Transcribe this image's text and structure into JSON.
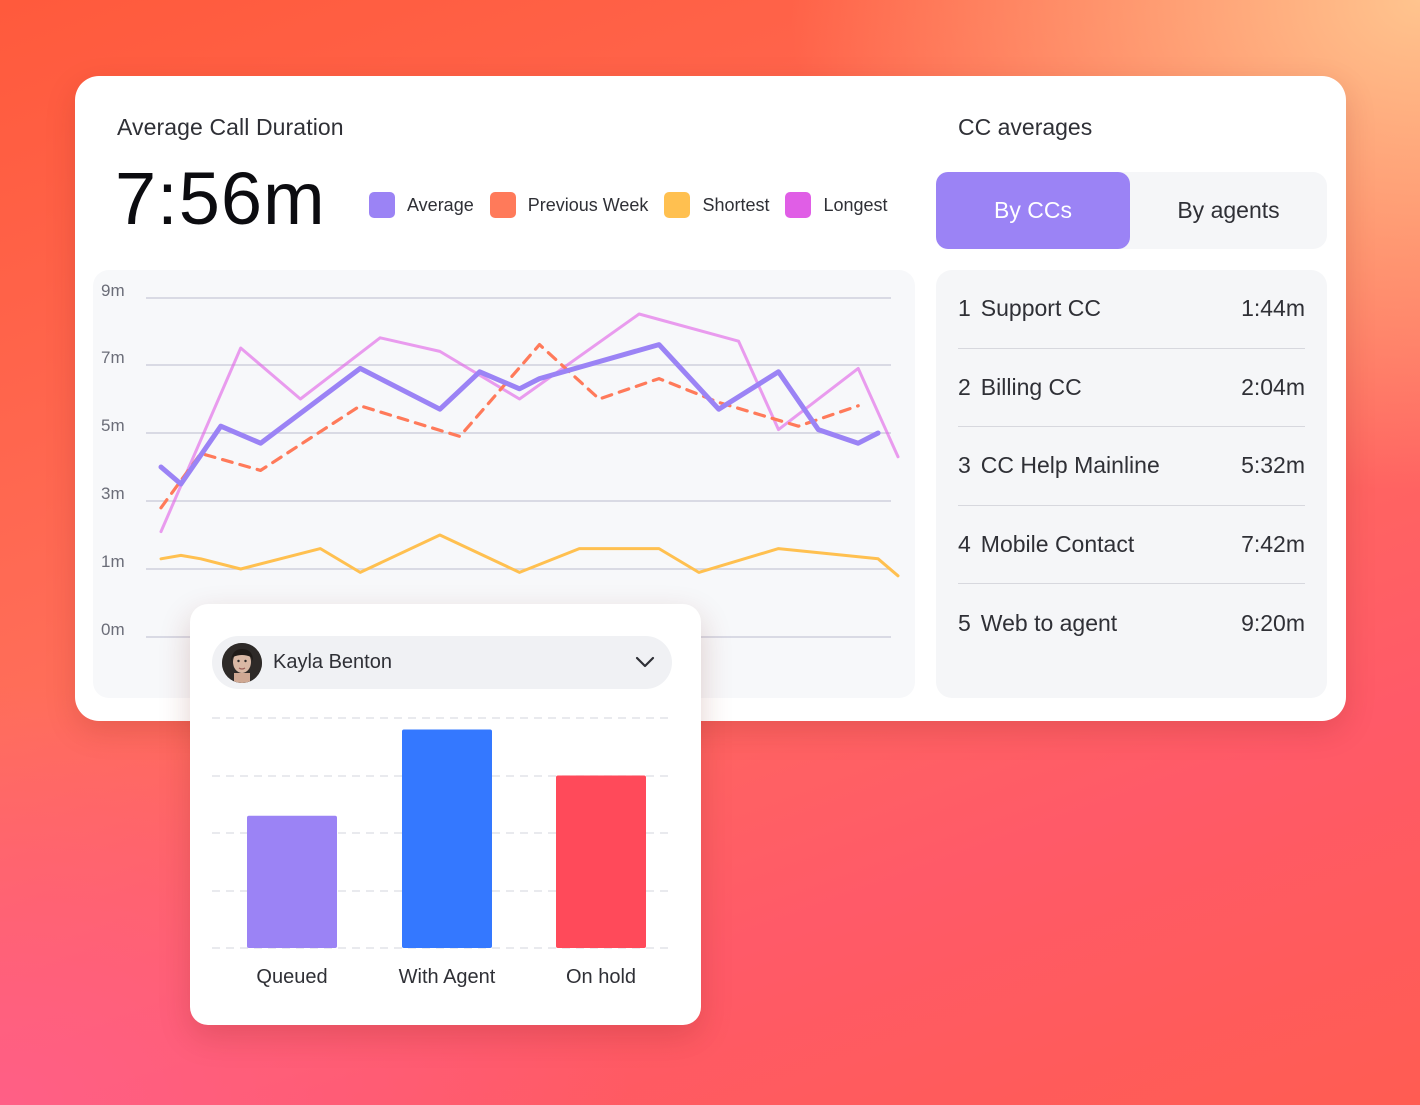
{
  "duration": {
    "title": "Average Call Duration",
    "value": "7:56m"
  },
  "legend": [
    {
      "label": "Average",
      "color": "#9b83f5"
    },
    {
      "label": "Previous Week",
      "color": "#ff7a5a"
    },
    {
      "label": "Shortest",
      "color": "#ffc050"
    },
    {
      "label": "Longest",
      "color": "#e05ee6"
    }
  ],
  "cc_averages": {
    "title": "CC averages",
    "tabs": [
      {
        "label": "By CCs",
        "active": true
      },
      {
        "label": "By agents",
        "active": false
      }
    ],
    "rows": [
      {
        "rank": "1",
        "name": "Support CC",
        "value": "1:44m"
      },
      {
        "rank": "2",
        "name": "Billing CC",
        "value": "2:04m"
      },
      {
        "rank": "3",
        "name": "CC Help Mainline",
        "value": "5:32m"
      },
      {
        "rank": "4",
        "name": "Mobile Contact",
        "value": "7:42m"
      },
      {
        "rank": "5",
        "name": "Web to agent",
        "value": "9:20m"
      }
    ]
  },
  "agent_panel": {
    "agent_name": "Kayla Benton"
  },
  "chart_data": [
    {
      "type": "line",
      "title": "Average Call Duration",
      "yticks": [
        "9m",
        "7m",
        "5m",
        "3m",
        "1m",
        "0m"
      ],
      "ylim": [
        0,
        10
      ],
      "grid": true,
      "legend_position": "top",
      "series": [
        {
          "name": "Average",
          "color": "#9b83f5",
          "style": "solid-thick",
          "x": [
            0,
            1,
            3,
            5,
            10,
            14,
            16,
            18,
            19,
            25,
            28,
            31,
            33,
            35,
            36
          ],
          "y": [
            5.0,
            4.5,
            6.2,
            5.7,
            7.9,
            6.7,
            7.8,
            7.3,
            7.6,
            8.6,
            6.7,
            7.8,
            6.1,
            5.7,
            6.0
          ]
        },
        {
          "name": "Previous Week",
          "color": "#ff7a5a",
          "style": "dashed",
          "x": [
            0,
            2,
            5,
            10,
            15,
            19,
            22,
            25,
            28,
            32,
            35
          ],
          "y": [
            3.8,
            5.4,
            4.9,
            6.8,
            5.9,
            8.6,
            7.0,
            7.6,
            6.9,
            6.2,
            6.8
          ]
        },
        {
          "name": "Shortest",
          "color": "#ffc050",
          "style": "solid",
          "x": [
            0,
            1,
            2,
            4,
            8,
            10,
            14,
            18,
            21,
            25,
            27,
            31,
            36,
            37
          ],
          "y": [
            2.3,
            2.4,
            2.3,
            2.0,
            2.6,
            1.9,
            3.0,
            1.9,
            2.6,
            2.6,
            1.9,
            2.6,
            2.3,
            1.8
          ]
        },
        {
          "name": "Longest",
          "color": "#e05ee6",
          "style": "solid-thin",
          "x": [
            0,
            4,
            7,
            11,
            14,
            18,
            24,
            29,
            31,
            35,
            37
          ],
          "y": [
            3.1,
            8.5,
            7.0,
            8.8,
            8.4,
            7.0,
            9.5,
            8.7,
            6.1,
            7.9,
            5.3
          ]
        }
      ]
    },
    {
      "type": "bar",
      "categories": [
        "Queued",
        "With Agent",
        "On hold"
      ],
      "values": [
        2.3,
        3.8,
        3.0
      ],
      "colors": [
        "#9b83f5",
        "#3478ff",
        "#ff4a5a"
      ],
      "ylim": [
        0,
        4
      ]
    }
  ]
}
